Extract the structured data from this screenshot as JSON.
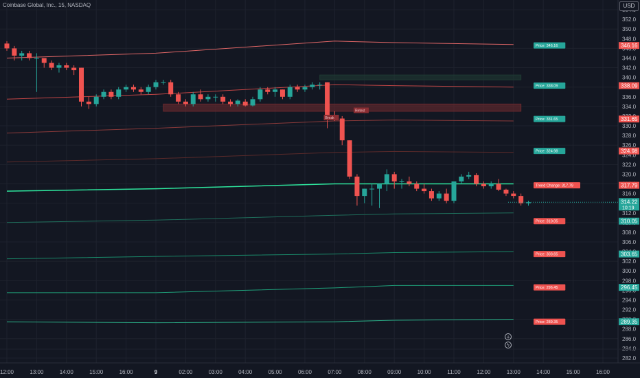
{
  "header": {
    "title": "Coinbase Global, Inc., 15, NASDAQ"
  },
  "currency_button": "USD",
  "colors": {
    "bg": "#131722",
    "grid": "#1e222d",
    "up": "#26a69a",
    "down": "#ef5350",
    "axis_text": "#b2b5be"
  },
  "chart_data": {
    "type": "candlestick",
    "title": "Coinbase Global, Inc., 15, NASDAQ",
    "ylim": [
      281,
      356
    ],
    "y_ticks": [
      282,
      284,
      286,
      288,
      290,
      292,
      294,
      296,
      298,
      300,
      302,
      304,
      306,
      308,
      310,
      312,
      314,
      316,
      318,
      320,
      322,
      324,
      326,
      328,
      330,
      332,
      334,
      336,
      338,
      340,
      342,
      344,
      346,
      348,
      350,
      352,
      354
    ],
    "x_ticks": [
      {
        "label": "12:00",
        "i": 0
      },
      {
        "label": "13:00",
        "i": 4
      },
      {
        "label": "14:00",
        "i": 8
      },
      {
        "label": "15:00",
        "i": 12
      },
      {
        "label": "16:00",
        "i": 16
      },
      {
        "label": "9",
        "i": 20
      },
      {
        "label": "02:00",
        "i": 24
      },
      {
        "label": "03:00",
        "i": 28
      },
      {
        "label": "04:00",
        "i": 32
      },
      {
        "label": "05:00",
        "i": 36
      },
      {
        "label": "06:00",
        "i": 40
      },
      {
        "label": "07:00",
        "i": 44
      },
      {
        "label": "08:00",
        "i": 48
      },
      {
        "label": "09:00",
        "i": 52
      },
      {
        "label": "10:00",
        "i": 56
      },
      {
        "label": "11:00",
        "i": 60
      },
      {
        "label": "12:00",
        "i": 64
      },
      {
        "label": "13:00",
        "i": 68
      },
      {
        "label": "14:00",
        "i": 72
      },
      {
        "label": "15:00",
        "i": 76
      },
      {
        "label": "16:00",
        "i": 80
      }
    ],
    "candles": [
      [
        347,
        347.5,
        345.5,
        346
      ],
      [
        346,
        346.5,
        343.5,
        344.5
      ],
      [
        344.5,
        345.5,
        343.5,
        345
      ],
      [
        345,
        345.5,
        343.5,
        344
      ],
      [
        344,
        345,
        337,
        344
      ],
      [
        344,
        344,
        342,
        343
      ],
      [
        343,
        343.5,
        341.5,
        342
      ],
      [
        342,
        343,
        341,
        342.5
      ],
      [
        342.5,
        343,
        341.5,
        342
      ],
      [
        342,
        342.5,
        340.5,
        341.5
      ],
      [
        342,
        342,
        334,
        335
      ],
      [
        335,
        336,
        333.5,
        334.5
      ],
      [
        334.5,
        336.5,
        334,
        336
      ],
      [
        336,
        337.5,
        335.5,
        337
      ],
      [
        337,
        337.5,
        335.5,
        336
      ],
      [
        336,
        338,
        335.5,
        337.5
      ],
      [
        337.5,
        338.5,
        337,
        338
      ],
      [
        338,
        338.5,
        337,
        337.5
      ],
      [
        337.5,
        338,
        336.5,
        337
      ],
      [
        337,
        338.5,
        336.5,
        338
      ],
      [
        338,
        339.5,
        337.5,
        339
      ],
      [
        339,
        339.5,
        338.5,
        339
      ],
      [
        339,
        339.5,
        336,
        336.5
      ],
      [
        336.5,
        337,
        334.5,
        335
      ],
      [
        335,
        335.5,
        334,
        334.5
      ],
      [
        334.5,
        337,
        334,
        336.5
      ],
      [
        336.5,
        337.5,
        335,
        335.5
      ],
      [
        335.5,
        336.5,
        335,
        336
      ],
      [
        336,
        336.5,
        335,
        336
      ],
      [
        336,
        336.5,
        334.5,
        335
      ],
      [
        335,
        335.5,
        334,
        334.5
      ],
      [
        334.5,
        335.5,
        334,
        335.2
      ],
      [
        335,
        335.5,
        334,
        334.2
      ],
      [
        334.2,
        336,
        334,
        335.5
      ],
      [
        335.5,
        338,
        335,
        337.5
      ],
      [
        337.5,
        338,
        336.5,
        337
      ],
      [
        337,
        338,
        336,
        337.5
      ],
      [
        337.5,
        337.5,
        335.5,
        336
      ],
      [
        336,
        338.5,
        335.5,
        338
      ],
      [
        338,
        338.5,
        337,
        337.5
      ],
      [
        337.5,
        338.5,
        337,
        338
      ],
      [
        338,
        339,
        337.5,
        338.5
      ],
      [
        338.5,
        339,
        337.5,
        338.5
      ],
      [
        339,
        339,
        329.5,
        332
      ],
      [
        332,
        333,
        331,
        331.5
      ],
      [
        331.5,
        332,
        326,
        327
      ],
      [
        327,
        327,
        319,
        319.5
      ],
      [
        319.5,
        320,
        313.5,
        315.5
      ],
      [
        315.5,
        317,
        314,
        317
      ],
      [
        317,
        318,
        313.5,
        317
      ],
      [
        317,
        318,
        313,
        318
      ],
      [
        318,
        321,
        316.5,
        320
      ],
      [
        320,
        320.5,
        317,
        318.5
      ],
      [
        318.5,
        319,
        317,
        318.5
      ],
      [
        318.5,
        319.5,
        317.5,
        318
      ],
      [
        318,
        318.5,
        316.5,
        317
      ],
      [
        317,
        318,
        316,
        316.5
      ],
      [
        316.5,
        317,
        314.5,
        315
      ],
      [
        315,
        316.5,
        314.5,
        316
      ],
      [
        316,
        317,
        314,
        314.5
      ],
      [
        314.5,
        318.5,
        314,
        318.5
      ],
      [
        318.5,
        320,
        318,
        319.5
      ],
      [
        319.5,
        320.5,
        319,
        319.8
      ],
      [
        319.8,
        320.2,
        317.5,
        318
      ],
      [
        318,
        318.5,
        317,
        317.5
      ],
      [
        317.5,
        318.5,
        317,
        318
      ],
      [
        318,
        319,
        316.5,
        316.8
      ],
      [
        316.8,
        317,
        315.5,
        316
      ],
      [
        316,
        316.5,
        315,
        315.5
      ],
      [
        315.5,
        316,
        313.5,
        314
      ],
      [
        314,
        314.5,
        313.5,
        314.2
      ]
    ],
    "lines": [
      {
        "name": "upper-red-1",
        "color": "#e06666",
        "pts": [
          [
            0,
            344
          ],
          [
            20,
            345
          ],
          [
            44,
            347.5
          ],
          [
            52,
            347.2
          ],
          [
            68,
            346.8
          ]
        ]
      },
      {
        "name": "upper-red-2",
        "color": "#c04545",
        "pts": [
          [
            0,
            335.5
          ],
          [
            20,
            336.5
          ],
          [
            44,
            338.5
          ],
          [
            52,
            338.3
          ],
          [
            68,
            338
          ]
        ]
      },
      {
        "name": "mid-red",
        "color": "#8b3a3a",
        "pts": [
          [
            0,
            328.5
          ],
          [
            20,
            329.5
          ],
          [
            44,
            331
          ],
          [
            52,
            331.2
          ],
          [
            68,
            331
          ]
        ]
      },
      {
        "name": "low-red",
        "color": "#5a2a2a",
        "pts": [
          [
            0,
            322.5
          ],
          [
            20,
            323.2
          ],
          [
            44,
            324.5
          ],
          [
            52,
            324.7
          ],
          [
            68,
            324.5
          ]
        ]
      },
      {
        "name": "trend-green",
        "color": "#2ee59d",
        "pts": [
          [
            0,
            316.5
          ],
          [
            20,
            317
          ],
          [
            44,
            318
          ],
          [
            52,
            318
          ],
          [
            68,
            318
          ]
        ]
      },
      {
        "name": "green-2",
        "color": "#1f6f5c",
        "pts": [
          [
            0,
            310
          ],
          [
            20,
            310.5
          ],
          [
            44,
            311.5
          ],
          [
            52,
            311.8
          ],
          [
            68,
            312
          ]
        ]
      },
      {
        "name": "green-3",
        "color": "#1a8a6a",
        "pts": [
          [
            0,
            302.5
          ],
          [
            20,
            303
          ],
          [
            44,
            303.5
          ],
          [
            52,
            303.8
          ],
          [
            68,
            304
          ]
        ]
      },
      {
        "name": "green-4",
        "color": "#1fa07a",
        "pts": [
          [
            0,
            295.5
          ],
          [
            20,
            295.5
          ],
          [
            44,
            296.5
          ],
          [
            52,
            297
          ],
          [
            68,
            297
          ]
        ]
      },
      {
        "name": "green-5",
        "color": "#2bb38a",
        "pts": [
          [
            0,
            289.5
          ],
          [
            20,
            289.3
          ],
          [
            44,
            289.5
          ],
          [
            52,
            289.8
          ],
          [
            68,
            290
          ]
        ]
      }
    ],
    "zones": [
      {
        "name": "top-zone",
        "color": "#1f3a33",
        "x0": 42,
        "x1": 69,
        "y0": 339.5,
        "y1": 340.5
      },
      {
        "name": "red-zone",
        "color": "#6b2a2e",
        "x0": 21,
        "x1": 69,
        "y0": 333,
        "y1": 334.5
      }
    ],
    "labels": [
      {
        "text": "Price: 346.16",
        "y": 346.6,
        "color": "#26a69a"
      },
      {
        "text": "Price: 338.09",
        "y": 338.3,
        "color": "#26a69a"
      },
      {
        "text": "Price: 331.65",
        "y": 331.4,
        "color": "#26a69a"
      },
      {
        "text": "Price: 324.98",
        "y": 324.8,
        "color": "#26a69a"
      },
      {
        "text": "Trend Change: 317.79",
        "y": 317.7,
        "color": "#ef5350"
      },
      {
        "text": "Price: 310.05",
        "y": 310.3,
        "color": "#ef5350"
      },
      {
        "text": "Price: 303.65",
        "y": 303.5,
        "color": "#ef5350"
      },
      {
        "text": "Price: 296.45",
        "y": 296.6,
        "color": "#ef5350"
      },
      {
        "text": "Price: 289.35",
        "y": 289.5,
        "color": "#ef5350"
      }
    ],
    "price_tags": [
      {
        "text": "346.16",
        "y": 346.6,
        "color": "#ef5350"
      },
      {
        "text": "338.09",
        "y": 338.3,
        "color": "#ef5350"
      },
      {
        "text": "331.65",
        "y": 331.4,
        "color": "#ef5350"
      },
      {
        "text": "324.98",
        "y": 324.8,
        "color": "#ef5350"
      },
      {
        "text": "317.79",
        "y": 317.7,
        "color": "#ef5350"
      },
      {
        "text": "310.05",
        "y": 310.3,
        "color": "#26a69a"
      },
      {
        "text": "303.65",
        "y": 303.5,
        "color": "#26a69a"
      },
      {
        "text": "296.45",
        "y": 296.6,
        "color": "#26a69a"
      },
      {
        "text": "289.35",
        "y": 289.5,
        "color": "#26a69a"
      }
    ],
    "current_price": {
      "text": "314.22",
      "countdown": "10:19",
      "y": 314.2,
      "color": "#26a69a"
    },
    "small_tags": [
      {
        "text": "Break",
        "i": 43,
        "y": 331.7
      },
      {
        "text": "Retest",
        "i": 47,
        "y": 333.2
      }
    ]
  }
}
